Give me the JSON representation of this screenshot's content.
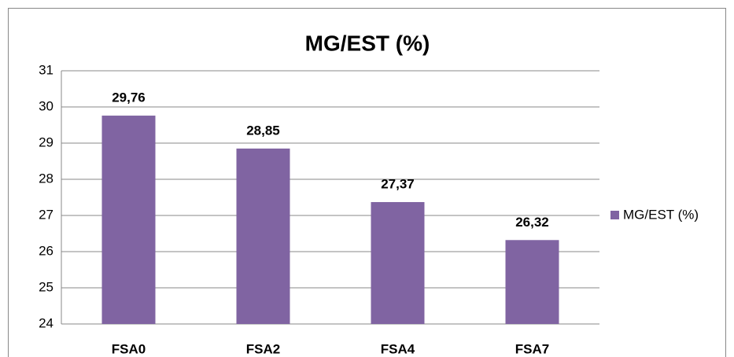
{
  "chart_data": {
    "type": "bar",
    "title": "MG/EST (%)",
    "categories": [
      "FSA0",
      "FSA2",
      "FSA4",
      "FSA7"
    ],
    "series": [
      {
        "name": "MG/EST (%)",
        "color": "#8064a2",
        "values": [
          29.76,
          28.85,
          27.37,
          26.32
        ],
        "value_labels": [
          "29,76",
          "28,85",
          "27,37",
          "26,32"
        ]
      }
    ],
    "ylim": [
      24,
      31
    ],
    "yticks": [
      24,
      25,
      26,
      27,
      28,
      29,
      30,
      31
    ],
    "grid": true,
    "legend": "right"
  }
}
